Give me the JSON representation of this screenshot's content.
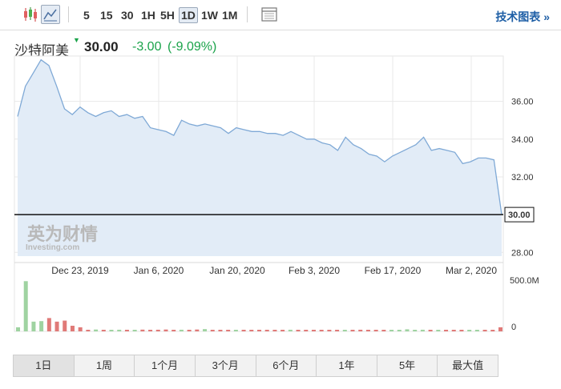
{
  "toolbar": {
    "chart_type_icons": [
      "candlestick-icon",
      "area-chart-icon"
    ],
    "timeframes": [
      "5",
      "15",
      "30",
      "1H",
      "5H",
      "1D",
      "1W",
      "1M"
    ],
    "active_timeframe": "1D",
    "settings_icon": "chart-settings-icon",
    "tech_chart_label": "技术图表 »"
  },
  "header": {
    "name": "沙特阿美",
    "price": "30.00",
    "change": "-3.00",
    "change_pct": "(-9.09%)",
    "change_color": "#1aa34a",
    "marker_icon": "down-triangle-icon"
  },
  "watermark": {
    "brand_cn": "英为财情",
    "brand_en": "Investing.com"
  },
  "chart_data": {
    "type": "area",
    "x_tick_labels": [
      "Dec 23, 2019",
      "Jan 6, 2020",
      "Jan 20, 2020",
      "Feb 3, 2020",
      "Feb 17, 2020",
      "Mar 2, 2020"
    ],
    "y_tick_labels": [
      "36.00",
      "34.00",
      "32.00",
      "30.00",
      "28.00"
    ],
    "ylim": [
      27.8,
      38.4
    ],
    "current_price": 30.0,
    "current_price_label": "30.00",
    "price_series": [
      35.2,
      36.8,
      37.5,
      38.2,
      37.9,
      36.8,
      35.6,
      35.3,
      35.7,
      35.4,
      35.2,
      35.4,
      35.5,
      35.2,
      35.3,
      35.1,
      35.2,
      34.6,
      34.5,
      34.4,
      34.2,
      35.0,
      34.8,
      34.7,
      34.8,
      34.7,
      34.6,
      34.3,
      34.6,
      34.5,
      34.4,
      34.4,
      34.3,
      34.3,
      34.2,
      34.4,
      34.2,
      34.0,
      34.0,
      33.8,
      33.7,
      33.4,
      34.1,
      33.7,
      33.5,
      33.2,
      33.1,
      32.8,
      33.1,
      33.3,
      33.5,
      33.7,
      34.1,
      33.4,
      33.5,
      33.4,
      33.3,
      32.7,
      32.8,
      33.0,
      33.0,
      32.9,
      30.0
    ],
    "volume_label_max": "500.0M",
    "volume_label_zero": "0",
    "volume_max": 500,
    "volume_series": [
      40,
      490,
      95,
      100,
      130,
      95,
      105,
      55,
      40,
      15,
      18,
      12,
      14,
      16,
      15,
      15,
      17,
      14,
      16,
      18,
      12,
      16,
      15,
      18,
      22,
      14,
      13,
      15,
      13,
      12,
      14,
      12,
      15,
      14,
      13,
      16,
      12,
      13,
      14,
      12,
      15,
      14,
      12,
      13,
      16,
      12,
      14,
      15,
      13,
      12,
      20,
      13,
      16,
      15,
      14,
      13,
      12,
      14,
      13,
      15,
      14,
      12,
      40
    ],
    "volume_up": [
      1,
      1,
      1,
      1,
      0,
      0,
      0,
      0,
      0,
      0,
      1,
      0,
      1,
      1,
      0,
      1,
      0,
      0,
      0,
      0,
      0,
      1,
      0,
      0,
      1,
      0,
      0,
      0,
      1,
      0,
      0,
      0,
      0,
      0,
      0,
      1,
      0,
      0,
      0,
      0,
      0,
      0,
      1,
      0,
      0,
      0,
      0,
      0,
      1,
      1,
      1,
      1,
      1,
      0,
      1,
      0,
      0,
      0,
      1,
      1,
      0,
      0,
      0
    ],
    "colors": {
      "line": "#7fa9d6",
      "fill": "#e2ecf7",
      "up": "#9fd3a1",
      "down": "#e07a78",
      "grid": "#e8e8e8"
    }
  },
  "ranges": [
    "1日",
    "1周",
    "1个月",
    "3个月",
    "6个月",
    "1年",
    "5年",
    "最大值"
  ],
  "active_range": "1日"
}
